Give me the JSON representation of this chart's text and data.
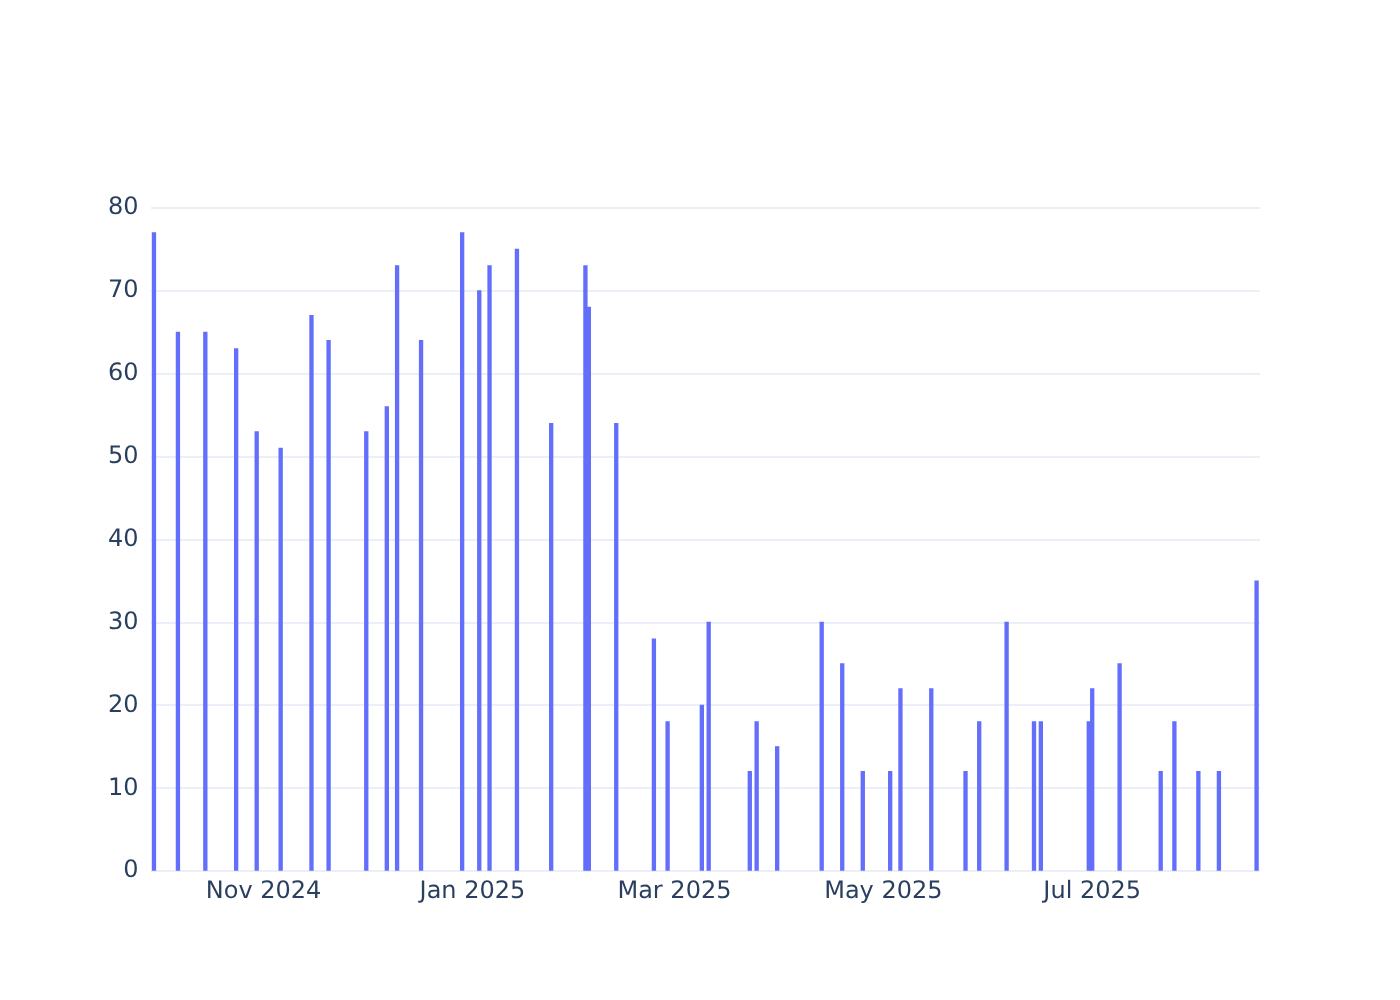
{
  "chart_data": {
    "type": "bar",
    "x": [
      "2024-09-30",
      "2024-10-07",
      "2024-10-15",
      "2024-10-24",
      "2024-10-30",
      "2024-11-06",
      "2024-11-15",
      "2024-11-20",
      "2024-12-01",
      "2024-12-07",
      "2024-12-10",
      "2024-12-17",
      "2024-12-29",
      "2025-01-03",
      "2025-01-06",
      "2025-01-14",
      "2025-01-24",
      "2025-02-03",
      "2025-02-04",
      "2025-02-12",
      "2025-02-23",
      "2025-02-27",
      "2025-03-09",
      "2025-03-11",
      "2025-03-23",
      "2025-03-25",
      "2025-03-31",
      "2025-04-13",
      "2025-04-19",
      "2025-04-25",
      "2025-05-03",
      "2025-05-06",
      "2025-05-15",
      "2025-05-25",
      "2025-05-29",
      "2025-06-06",
      "2025-06-14",
      "2025-06-16",
      "2025-06-30",
      "2025-07-01",
      "2025-07-09",
      "2025-07-21",
      "2025-07-25",
      "2025-08-01",
      "2025-08-07",
      "2025-08-18"
    ],
    "values": [
      77,
      65,
      65,
      63,
      53,
      51,
      67,
      64,
      53,
      56,
      73,
      64,
      77,
      70,
      73,
      75,
      54,
      73,
      68,
      54,
      28,
      18,
      20,
      30,
      12,
      18,
      15,
      30,
      25,
      12,
      12,
      22,
      22,
      12,
      18,
      30,
      18,
      18,
      18,
      22,
      25,
      12,
      18,
      12,
      12,
      35
    ],
    "color": "#636efa",
    "xlim": [
      "2024-09-29",
      "2025-08-19"
    ],
    "xticks": [
      {
        "value": "2024-11-01",
        "label": "Nov 2024"
      },
      {
        "value": "2025-01-01",
        "label": "Jan 2025"
      },
      {
        "value": "2025-03-01",
        "label": "Mar 2025"
      },
      {
        "value": "2025-05-01",
        "label": "May 2025"
      },
      {
        "value": "2025-07-01",
        "label": "Jul 2025"
      }
    ],
    "ylim": [
      0,
      80
    ],
    "yticks": [
      0,
      10,
      20,
      30,
      40,
      50,
      60,
      70,
      80
    ],
    "grid": "y"
  }
}
